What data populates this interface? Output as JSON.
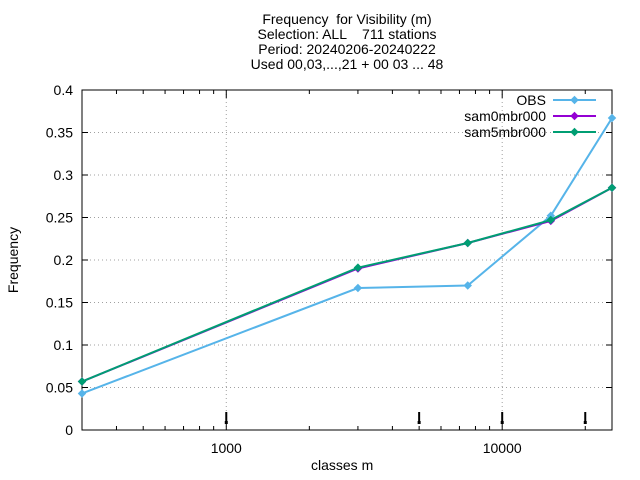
{
  "chart_data": {
    "type": "line",
    "title_lines": [
      "Frequency  for Visibility (m)",
      "Selection: ALL    711 stations",
      "Period: 20240206-20240222",
      "Used 00,03,...,21 + 00 03 ... 48"
    ],
    "xlabel": "classes m",
    "ylabel": "Frequency",
    "x_scale": "log",
    "xlim": [
      300,
      25000
    ],
    "ylim": [
      0,
      0.4
    ],
    "grid": true,
    "legend_position": "top-right",
    "x_ticks": [
      {
        "value": 1000,
        "label": "1000"
      },
      {
        "value": 10000,
        "label": "10000"
      }
    ],
    "y_ticks": [
      {
        "value": 0,
        "label": "0"
      },
      {
        "value": 0.05,
        "label": "0.05"
      },
      {
        "value": 0.1,
        "label": "0.1"
      },
      {
        "value": 0.15,
        "label": "0.15"
      },
      {
        "value": 0.2,
        "label": "0.2"
      },
      {
        "value": 0.25,
        "label": "0.25"
      },
      {
        "value": 0.3,
        "label": "0.3"
      },
      {
        "value": 0.35,
        "label": "0.35"
      },
      {
        "value": 0.4,
        "label": "0.4"
      }
    ],
    "class_markers": [
      1000,
      5000,
      10000,
      20000
    ],
    "series": [
      {
        "name": "OBS",
        "color": "#56b4e9",
        "x": [
          300,
          3000,
          7500,
          15000,
          25000
        ],
        "values": [
          0.043,
          0.167,
          0.17,
          0.252,
          0.367
        ]
      },
      {
        "name": "sam0mbr000",
        "color": "#9400d3",
        "x": [
          300,
          3000,
          7500,
          15000,
          25000
        ],
        "values": [
          0.057,
          0.19,
          0.22,
          0.246,
          0.285
        ]
      },
      {
        "name": "sam5mbr000",
        "color": "#009e73",
        "x": [
          300,
          3000,
          7500,
          15000,
          25000
        ],
        "values": [
          0.057,
          0.191,
          0.22,
          0.247,
          0.285
        ]
      }
    ]
  }
}
